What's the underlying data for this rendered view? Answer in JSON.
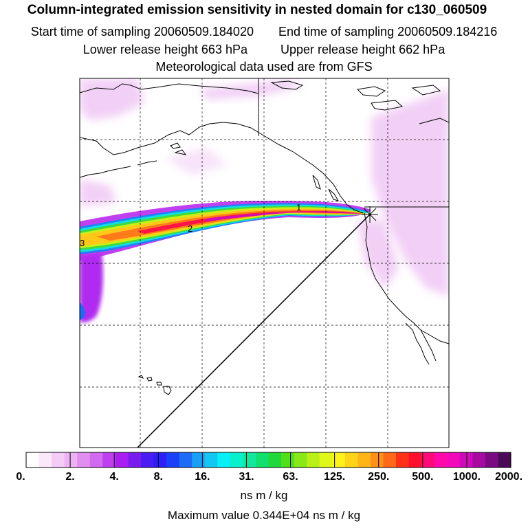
{
  "header": {
    "title": "Column-integrated emission sensitivity in nested domain for c130_060509",
    "start_label": "Start time of sampling",
    "start_value": "20060509.184020",
    "end_label": "End time of sampling",
    "end_value": "20060509.184216",
    "lower_label": "Lower release height",
    "lower_value": "663 hPa",
    "upper_label": "Upper release height",
    "upper_value": "662 hPa",
    "met_line": "Meteorological data used are from GFS"
  },
  "trajectory_labels": [
    "1",
    "2",
    "3"
  ],
  "colorbar": {
    "ticks": [
      "0.",
      "2.",
      "4.",
      "8.",
      "16.",
      "31.",
      "63.",
      "125.",
      "250.",
      "500.",
      "1000.",
      "2000."
    ],
    "colors": [
      "#ffffff",
      "#fbe8fb",
      "#f4ccf6",
      "#eeb2f2",
      "#e08ef0",
      "#d06aee",
      "#bf3ff0",
      "#a91cf2",
      "#7a1cf0",
      "#4a1ef2",
      "#2e1efa",
      "#1a40fa",
      "#1c6cf6",
      "#18a0f4",
      "#12c8f2",
      "#06f0f6",
      "#08f0cc",
      "#10e8a0",
      "#10e070",
      "#20d83a",
      "#50e018",
      "#88e818",
      "#b8f018",
      "#e0f818",
      "#fff218",
      "#ffd418",
      "#ffb418",
      "#ff9018",
      "#ff6818",
      "#ff3018",
      "#ff102c",
      "#ff0a78",
      "#ff0aa8",
      "#f20aba",
      "#d00ab8",
      "#a60aa0",
      "#7a0a82",
      "#4a0a58"
    ],
    "units": "ns m / kg"
  },
  "max_value_line": "Maximum value  0.344E+04 ns m / kg"
}
